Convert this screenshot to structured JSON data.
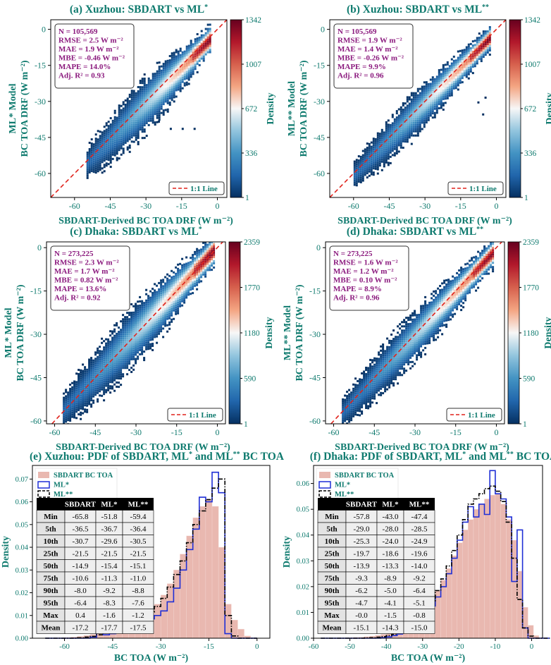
{
  "colors": {
    "accent": "#0e7a6e",
    "stats": "#8b1a7e",
    "oneToOne": "#e0221b",
    "sbdart_fill": "#e9b8b0",
    "ml_star": "#1f2fd6",
    "ml_2star": "#000000",
    "cmap": [
      "#053061",
      "#2166ac",
      "#4393c3",
      "#92c5de",
      "#f7f7f7",
      "#f4a582",
      "#d6604d",
      "#b2182b",
      "#67001f"
    ]
  },
  "chart_data": [
    {
      "id": "a",
      "type": "scatter-density",
      "title": "(a) Xuzhou: SBDART vs ML*",
      "xlabel": "SBDART-Derived BC TOA DRF (W m⁻²)",
      "ylabel_line1": "ML* Model",
      "ylabel_line2": "BC TOA DRF (W m⁻²)",
      "xticks": [
        -60,
        -45,
        -30,
        -15,
        0
      ],
      "yticks": [
        0,
        -15,
        -30,
        -45,
        -60
      ],
      "xlim": [
        -70,
        4
      ],
      "ylim": [
        -70,
        4
      ],
      "stats": [
        "N = 105,569",
        "RMSE = 2.5 W m⁻²",
        "MAE = 1.9 W m⁻²",
        "MBE = -0.46 W m⁻²",
        "MAPE = 14.0%",
        "Adj. R² = 0.93"
      ],
      "legend": "1:1 Line",
      "colorbar": {
        "label": "Density",
        "ticks": [
          "1342",
          "1007",
          "672",
          "336",
          "1"
        ],
        "max": 1342
      },
      "cloud": {
        "xmin": -55,
        "xmax": -3,
        "spread": 4.2,
        "bias": -0.5,
        "outliers": [
          [
            -20,
            -41
          ],
          [
            -15,
            -41
          ],
          [
            -10,
            -41
          ],
          [
            -25,
            -38
          ]
        ]
      }
    },
    {
      "id": "b",
      "type": "scatter-density",
      "title": "(b) Xuzhou: SBDART vs ML**",
      "xlabel": "SBDART-Derived BC TOA DRF (W m⁻²)",
      "ylabel_line1": "ML** Model",
      "ylabel_line2": "BC TOA DRF (W m⁻²)",
      "xticks": [
        -60,
        -45,
        -30,
        -15,
        0
      ],
      "yticks": [
        0,
        -15,
        -30,
        -45,
        -60
      ],
      "xlim": [
        -70,
        4
      ],
      "ylim": [
        -70,
        4
      ],
      "stats": [
        "N = 105,569",
        "RMSE = 1.9 W m⁻²",
        "MAE = 1.4 W m⁻²",
        "MBE = -0.26 W m⁻²",
        "MAPE = 9.9%",
        "Adj. R² = 0.96"
      ],
      "legend": "1:1 Line",
      "colorbar": {
        "label": "Density",
        "ticks": [
          "1342",
          "1007",
          "672",
          "336",
          "1"
        ],
        "max": 1342
      },
      "cloud": {
        "xmin": -60,
        "xmax": -3,
        "spread": 3.3,
        "bias": -0.3,
        "outliers": [
          [
            -6,
            -35
          ],
          [
            -8,
            -30
          ],
          [
            -5,
            -28
          ]
        ]
      }
    },
    {
      "id": "c",
      "type": "scatter-density",
      "title": "(c) Dhaka: SBDART vs ML*",
      "xlabel": "SBDART-Derived BC TOA DRF (W m⁻²)",
      "ylabel_line1": "ML* Model",
      "ylabel_line2": "BC TOA DRF (W m⁻²)",
      "xticks": [
        -60,
        -45,
        -30,
        -15,
        0
      ],
      "yticks": [
        0,
        -15,
        -30,
        -45,
        -60
      ],
      "xlim": [
        -63,
        3
      ],
      "ylim": [
        -61,
        2
      ],
      "stats": [
        "N = 273,225",
        "RMSE = 2.3 W m⁻²",
        "MAE = 1.7 W m⁻²",
        "MBE = 0.82 W m⁻²",
        "MAPE = 13.6%",
        "Adj. R² = 0.92"
      ],
      "legend": "1:1 Line",
      "colorbar": {
        "label": "Density",
        "ticks": [
          "2359",
          "1770",
          "1180",
          "590",
          "1"
        ],
        "max": 2359
      },
      "cloud": {
        "xmin": -57,
        "xmax": -1,
        "spread": 3.8,
        "bias": 0.9,
        "outliers": []
      }
    },
    {
      "id": "d",
      "type": "scatter-density",
      "title": "(d) Dhaka: SBDART vs ML**",
      "xlabel": "SBDART-Derived BC TOA DRF (W m⁻²)",
      "ylabel_line1": "ML** Model",
      "ylabel_line2": "BC TOA DRF (W m⁻²)",
      "xticks": [
        -60,
        -45,
        -30,
        -15,
        0
      ],
      "yticks": [
        0,
        -15,
        -30,
        -45,
        -60
      ],
      "xlim": [
        -63,
        3
      ],
      "ylim": [
        -61,
        2
      ],
      "stats": [
        "N = 273,225",
        "RMSE = 1.6 W m⁻²",
        "MAE = 1.2 W m⁻²",
        "MBE = 0.10 W m⁻²",
        "MAPE = 8.9%",
        "Adj. R² = 0.96"
      ],
      "legend": "1:1 Line",
      "colorbar": {
        "label": "Density",
        "ticks": [
          "2359",
          "1770",
          "1180",
          "590",
          "1"
        ],
        "max": 2359
      },
      "cloud": {
        "xmin": -57,
        "xmax": -1,
        "spread": 3.0,
        "bias": 0.1,
        "outliers": []
      }
    },
    {
      "id": "e",
      "type": "histogram",
      "title": "(e) Xuzhou: PDF of SBDART, ML* and ML** BC TOA",
      "xlabel": "BC TOA (W m⁻²)",
      "ylabel": "Density",
      "xticks": [
        -60,
        -45,
        -30,
        -15,
        0
      ],
      "yticks": [
        "0.00",
        "0.01",
        "0.02",
        "0.03",
        "0.04",
        "0.05",
        "0.06",
        "0.07"
      ],
      "xlim": [
        -70,
        4
      ],
      "ylim": [
        0,
        0.076
      ],
      "legend": [
        "SBDART BC TOA",
        "ML*",
        "ML**"
      ],
      "table": {
        "headers": [
          "",
          "SBDART",
          "ML*",
          "ML**"
        ],
        "rows": [
          [
            "Min",
            "-65.8",
            "-51.8",
            "-59.4"
          ],
          [
            "5th",
            "-36.5",
            "-36.7",
            "-36.4"
          ],
          [
            "10th",
            "-30.7",
            "-29.6",
            "-30.5"
          ],
          [
            "25th",
            "-21.5",
            "-21.5",
            "-21.5"
          ],
          [
            "50th",
            "-14.9",
            "-15.4",
            "-15.1"
          ],
          [
            "75th",
            "-10.6",
            "-11.3",
            "-11.0"
          ],
          [
            "90th",
            "-8.0",
            "-9.2",
            "-8.8"
          ],
          [
            "95th",
            "-6.4",
            "-8.3",
            "-7.6"
          ],
          [
            "Max",
            "0.4",
            "-1.6",
            "-1.2"
          ],
          [
            "Mean",
            "-17.2",
            "-17.7",
            "-17.5"
          ]
        ]
      },
      "bin_start": -66,
      "bin_width": 2,
      "sbdart": [
        0.0,
        0.0001,
        0.0002,
        0.0003,
        0.0005,
        0.0008,
        0.0012,
        0.0017,
        0.0025,
        0.0035,
        0.0045,
        0.0055,
        0.0065,
        0.0075,
        0.009,
        0.0105,
        0.0125,
        0.015,
        0.019,
        0.024,
        0.03,
        0.037,
        0.045,
        0.053,
        0.058,
        0.061,
        0.058,
        0.04,
        0.015,
        0.008,
        0.004,
        0.001,
        0.0002
      ],
      "ml_star": [
        0.0,
        0.0,
        0.0,
        0.0,
        0.0,
        0.0,
        0.0,
        0.0005,
        0.003,
        0.0015,
        0.002,
        0.0025,
        0.004,
        0.005,
        0.007,
        0.0075,
        0.0085,
        0.01,
        0.012,
        0.016,
        0.022,
        0.03,
        0.039,
        0.048,
        0.062,
        0.06,
        0.073,
        0.064,
        0.002,
        0.0,
        0.0,
        0.0,
        0.0
      ],
      "ml_2star": [
        0.0,
        0.0,
        0.0,
        0.0,
        0.0,
        0.0002,
        0.0005,
        0.0008,
        0.0015,
        0.0025,
        0.0035,
        0.0045,
        0.006,
        0.007,
        0.008,
        0.0095,
        0.0115,
        0.014,
        0.0175,
        0.0225,
        0.028,
        0.034,
        0.042,
        0.05,
        0.056,
        0.061,
        0.066,
        0.07,
        0.01,
        0.001,
        0.0,
        0.0,
        0.0
      ]
    },
    {
      "id": "f",
      "type": "histogram",
      "title": "(f) Dhaka: PDF of SBDART, ML* and ML** BC TOA",
      "xlabel": "BC TOA (W m⁻²)",
      "ylabel": "Density",
      "xticks": [
        -60,
        -50,
        -40,
        -30,
        -20,
        -10,
        0
      ],
      "yticks": [
        "0.00",
        "0.01",
        "0.02",
        "0.03",
        "0.04",
        "0.05",
        "0.06"
      ],
      "xlim": [
        -60,
        3
      ],
      "ylim": [
        0,
        0.067
      ],
      "legend": [
        "SBDART BC TOA",
        "ML*",
        "ML**"
      ],
      "table": {
        "headers": [
          "",
          "SBDART",
          "ML*",
          "ML**"
        ],
        "rows": [
          [
            "Min",
            "-57.8",
            "-43.0",
            "-47.4"
          ],
          [
            "5th",
            "-29.0",
            "-28.0",
            "-28.5"
          ],
          [
            "10th",
            "-25.3",
            "-24.0",
            "-24.9"
          ],
          [
            "25th",
            "-19.7",
            "-18.6",
            "-19.6"
          ],
          [
            "50th",
            "-13.9",
            "-13.3",
            "-14.0"
          ],
          [
            "75th",
            "-9.3",
            "-8.9",
            "-9.2"
          ],
          [
            "90th",
            "-6.2",
            "-5.0",
            "-6.4"
          ],
          [
            "95th",
            "-4.7",
            "-4.1",
            "-5.1"
          ],
          [
            "Max",
            "-0.0",
            "-1.5",
            "-0.8"
          ],
          [
            "Mean",
            "-15.1",
            "-14.3",
            "-15.0"
          ]
        ]
      },
      "bin_start": -58,
      "bin_width": 1.5,
      "sbdart": [
        0.0,
        0.0,
        0.0,
        0.0001,
        0.0001,
        0.0002,
        0.0003,
        0.0004,
        0.0006,
        0.0008,
        0.0011,
        0.0015,
        0.002,
        0.0026,
        0.0034,
        0.0045,
        0.0058,
        0.0075,
        0.0095,
        0.012,
        0.015,
        0.0185,
        0.0225,
        0.027,
        0.032,
        0.037,
        0.042,
        0.046,
        0.05,
        0.052,
        0.054,
        0.0555,
        0.056,
        0.052,
        0.046,
        0.038,
        0.026,
        0.012,
        0.005,
        0.001,
        0.0002,
        0.0
      ],
      "ml_star": [
        0.0,
        0.0,
        0.0,
        0.0,
        0.0,
        0.0,
        0.0,
        0.0,
        0.0,
        0.0,
        0.0,
        0.0002,
        0.0005,
        0.001,
        0.0016,
        0.0024,
        0.0036,
        0.005,
        0.007,
        0.0095,
        0.0125,
        0.016,
        0.02,
        0.025,
        0.031,
        0.038,
        0.045,
        0.051,
        0.047,
        0.052,
        0.048,
        0.065,
        0.056,
        0.054,
        0.047,
        0.022,
        0.042,
        0.004,
        0.0,
        0.0,
        0.0,
        0.0
      ],
      "ml_2star": [
        0.0,
        0.0,
        0.0,
        0.0,
        0.0,
        0.0,
        0.0,
        0.0,
        0.0001,
        0.0002,
        0.0004,
        0.0006,
        0.001,
        0.0015,
        0.0022,
        0.0032,
        0.0045,
        0.0062,
        0.0085,
        0.0112,
        0.0145,
        0.0185,
        0.023,
        0.028,
        0.034,
        0.04,
        0.046,
        0.052,
        0.054,
        0.056,
        0.058,
        0.059,
        0.057,
        0.053,
        0.045,
        0.031,
        0.015,
        0.004,
        0.0008,
        0.0,
        0.0,
        0.0
      ]
    }
  ]
}
